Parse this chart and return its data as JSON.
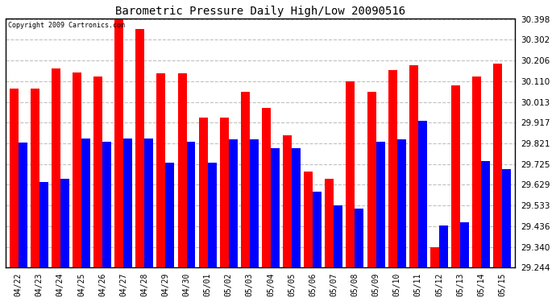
{
  "title": "Barometric Pressure Daily High/Low 20090516",
  "copyright": "Copyright 2009 Cartronics.com",
  "categories": [
    "04/22",
    "04/23",
    "04/24",
    "04/25",
    "04/26",
    "04/27",
    "04/28",
    "04/29",
    "04/30",
    "05/01",
    "05/02",
    "05/03",
    "05/04",
    "05/05",
    "05/06",
    "05/07",
    "05/08",
    "05/09",
    "05/10",
    "05/11",
    "05/12",
    "05/13",
    "05/14",
    "05/15"
  ],
  "highs": [
    30.075,
    30.075,
    30.17,
    30.15,
    30.13,
    30.395,
    30.35,
    30.145,
    30.145,
    29.94,
    29.94,
    30.06,
    29.985,
    29.86,
    29.69,
    29.655,
    30.11,
    30.06,
    30.16,
    30.185,
    29.34,
    30.09,
    30.13,
    30.19
  ],
  "lows": [
    29.825,
    29.64,
    29.655,
    29.845,
    29.83,
    29.845,
    29.845,
    29.73,
    29.83,
    29.73,
    29.84,
    29.84,
    29.8,
    29.8,
    29.595,
    29.535,
    29.52,
    29.83,
    29.84,
    29.925,
    29.44,
    29.455,
    29.74,
    29.7
  ],
  "high_color": "#ff0000",
  "low_color": "#0000ff",
  "bg_color": "#ffffff",
  "plot_bg_color": "#ffffff",
  "grid_color": "#c0c0c0",
  "yticks": [
    29.244,
    29.34,
    29.436,
    29.533,
    29.629,
    29.725,
    29.821,
    29.917,
    30.013,
    30.11,
    30.206,
    30.302,
    30.398
  ],
  "ymin": 29.244,
  "ymax": 30.398,
  "bar_width": 0.42
}
